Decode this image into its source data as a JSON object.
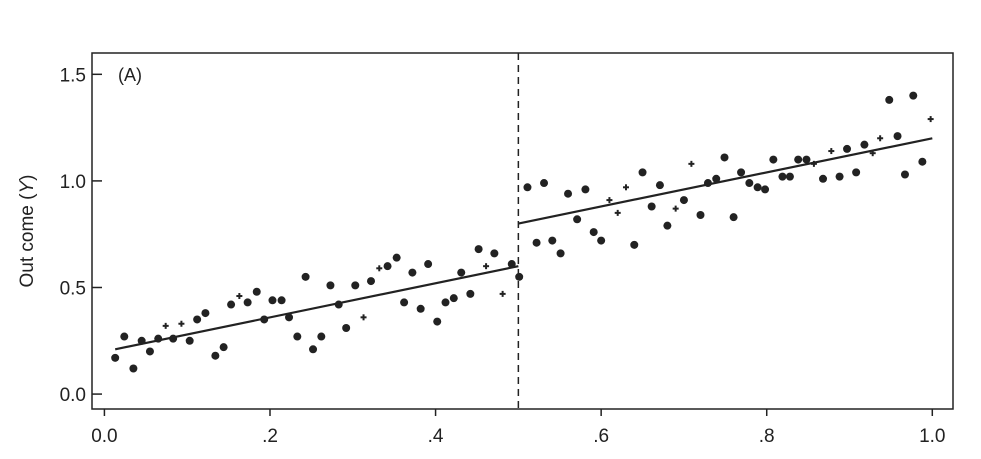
{
  "chart_data": {
    "type": "scatter",
    "title": "",
    "panel_label": "(A)",
    "xlabel": "",
    "ylabel_prefix": "Out come (",
    "ylabel_var": "Y",
    "ylabel_suffix": ")",
    "xlim": [
      -0.015,
      1.025
    ],
    "ylim": [
      -0.07,
      1.6
    ],
    "x_ticks": [
      0,
      0.2,
      0.4,
      0.6,
      0.8,
      1.0
    ],
    "x_tick_labels": [
      "0.0",
      ".2",
      ".4",
      ".6",
      ".8",
      "1.0"
    ],
    "y_ticks": [
      0,
      0.5,
      1.0,
      1.5
    ],
    "y_tick_labels": [
      "0.0",
      "0.5",
      "1.0",
      "1.5"
    ],
    "grid": false,
    "cutoff": 0.5,
    "cutoff_style": "dashed",
    "fit_lines": [
      {
        "x": [
          0.013,
          0.5
        ],
        "y": [
          0.21,
          0.6
        ]
      },
      {
        "x": [
          0.5,
          1.0
        ],
        "y": [
          0.8,
          1.2
        ]
      }
    ],
    "points_circle": [
      [
        0.013,
        0.17
      ],
      [
        0.024,
        0.27
      ],
      [
        0.035,
        0.12
      ],
      [
        0.045,
        0.25
      ],
      [
        0.055,
        0.2
      ],
      [
        0.065,
        0.26
      ],
      [
        0.083,
        0.26
      ],
      [
        0.103,
        0.25
      ],
      [
        0.112,
        0.35
      ],
      [
        0.122,
        0.38
      ],
      [
        0.134,
        0.18
      ],
      [
        0.144,
        0.22
      ],
      [
        0.153,
        0.42
      ],
      [
        0.173,
        0.43
      ],
      [
        0.184,
        0.48
      ],
      [
        0.193,
        0.35
      ],
      [
        0.203,
        0.44
      ],
      [
        0.214,
        0.44
      ],
      [
        0.223,
        0.36
      ],
      [
        0.233,
        0.27
      ],
      [
        0.243,
        0.55
      ],
      [
        0.252,
        0.21
      ],
      [
        0.262,
        0.27
      ],
      [
        0.273,
        0.51
      ],
      [
        0.283,
        0.42
      ],
      [
        0.292,
        0.31
      ],
      [
        0.303,
        0.51
      ],
      [
        0.322,
        0.53
      ],
      [
        0.342,
        0.6
      ],
      [
        0.353,
        0.64
      ],
      [
        0.362,
        0.43
      ],
      [
        0.372,
        0.57
      ],
      [
        0.382,
        0.4
      ],
      [
        0.391,
        0.61
      ],
      [
        0.402,
        0.34
      ],
      [
        0.412,
        0.43
      ],
      [
        0.422,
        0.45
      ],
      [
        0.431,
        0.57
      ],
      [
        0.442,
        0.47
      ],
      [
        0.452,
        0.68
      ],
      [
        0.471,
        0.66
      ],
      [
        0.492,
        0.61
      ],
      [
        0.501,
        0.55
      ],
      [
        0.511,
        0.97
      ],
      [
        0.522,
        0.71
      ],
      [
        0.531,
        0.99
      ],
      [
        0.541,
        0.72
      ],
      [
        0.551,
        0.66
      ],
      [
        0.56,
        0.94
      ],
      [
        0.571,
        0.82
      ],
      [
        0.581,
        0.96
      ],
      [
        0.591,
        0.76
      ],
      [
        0.6,
        0.72
      ],
      [
        0.64,
        0.7
      ],
      [
        0.65,
        1.04
      ],
      [
        0.661,
        0.88
      ],
      [
        0.671,
        0.98
      ],
      [
        0.68,
        0.79
      ],
      [
        0.7,
        0.91
      ],
      [
        0.72,
        0.84
      ],
      [
        0.729,
        0.99
      ],
      [
        0.739,
        1.01
      ],
      [
        0.749,
        1.11
      ],
      [
        0.76,
        0.83
      ],
      [
        0.769,
        1.04
      ],
      [
        0.779,
        0.99
      ],
      [
        0.789,
        0.97
      ],
      [
        0.798,
        0.96
      ],
      [
        0.808,
        1.1
      ],
      [
        0.819,
        1.02
      ],
      [
        0.828,
        1.02
      ],
      [
        0.838,
        1.1
      ],
      [
        0.848,
        1.1
      ],
      [
        0.868,
        1.01
      ],
      [
        0.888,
        1.02
      ],
      [
        0.897,
        1.15
      ],
      [
        0.908,
        1.04
      ],
      [
        0.918,
        1.17
      ],
      [
        0.948,
        1.38
      ],
      [
        0.958,
        1.21
      ],
      [
        0.967,
        1.03
      ],
      [
        0.977,
        1.4
      ],
      [
        0.988,
        1.09
      ]
    ],
    "points_plus": [
      [
        0.074,
        0.32
      ],
      [
        0.093,
        0.33
      ],
      [
        0.163,
        0.46
      ],
      [
        0.313,
        0.36
      ],
      [
        0.332,
        0.59
      ],
      [
        0.461,
        0.6
      ],
      [
        0.481,
        0.47
      ],
      [
        0.61,
        0.91
      ],
      [
        0.62,
        0.85
      ],
      [
        0.63,
        0.97
      ],
      [
        0.69,
        0.87
      ],
      [
        0.709,
        1.08
      ],
      [
        0.857,
        1.08
      ],
      [
        0.878,
        1.14
      ],
      [
        0.928,
        1.13
      ],
      [
        0.937,
        1.2
      ],
      [
        0.998,
        1.29
      ]
    ],
    "colors": {
      "marks": "#222222",
      "background": "#ffffff"
    }
  }
}
